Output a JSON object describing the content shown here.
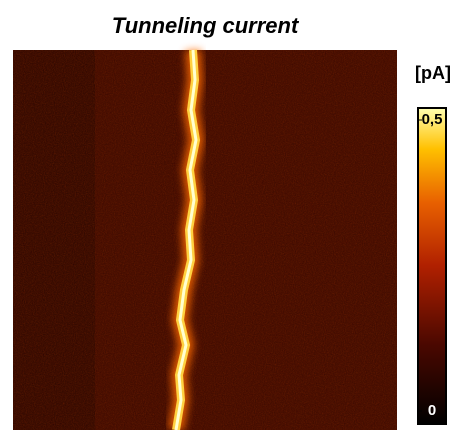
{
  "chart_data": {
    "type": "image",
    "title": "Tunneling current",
    "colorbar_label": "[pA]",
    "clim": [
      0,
      0.5
    ],
    "cticks": [
      0,
      {
        "value": 0.5,
        "label": "0,5"
      }
    ]
  }
}
